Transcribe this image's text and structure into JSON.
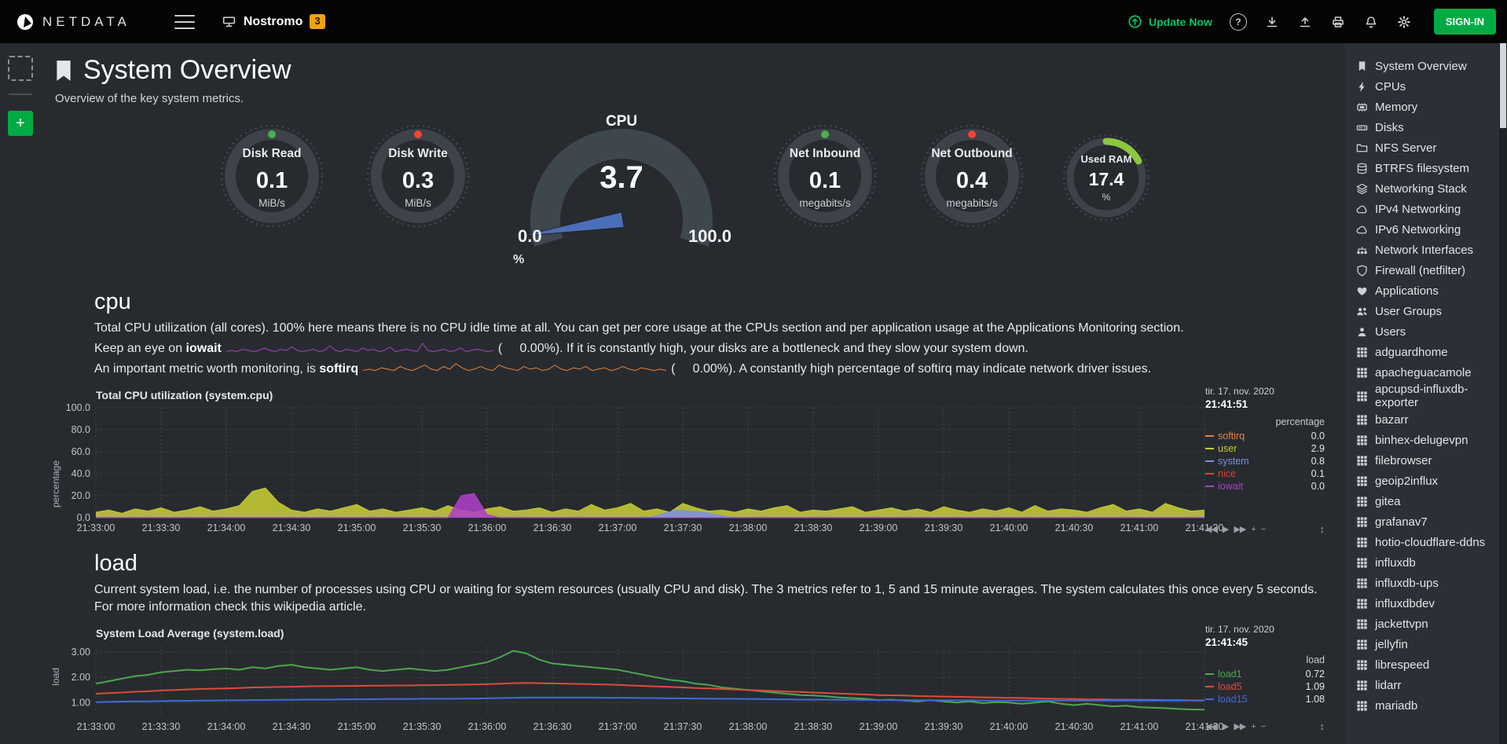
{
  "colors": {
    "accent_green": "#00AB44",
    "update_green": "#00C16A",
    "badge_orange": "#F2A20C",
    "needle": "#4A6FB8",
    "gauge_ring": "#3D4349",
    "gauge_ticks": "#474E54",
    "grid": "#3D4349"
  },
  "topbar": {
    "brand": "NETDATA",
    "node": {
      "name": "Nostromo",
      "badge": "3"
    },
    "update_now": "Update Now",
    "help_label": "?",
    "signin_label": "SIGN-IN"
  },
  "page": {
    "title": "System Overview",
    "subtitle": "Overview of the key system metrics.",
    "add_button_label": "+"
  },
  "gauges": {
    "disk_read": {
      "label": "Disk Read",
      "value": "0.1",
      "unit": "MiB/s",
      "percent": 1,
      "dot_color": "#4CAF50"
    },
    "disk_write": {
      "label": "Disk Write",
      "value": "0.3",
      "unit": "MiB/s",
      "percent": 1,
      "dot_color": "#EF4438"
    },
    "cpu": {
      "label": "CPU",
      "value": "3.7",
      "min": "0.0",
      "max": "100.0",
      "unit": "%"
    },
    "net_inbound": {
      "label": "Net Inbound",
      "value": "0.1",
      "unit": "megabits/s",
      "percent": 1,
      "dot_color": "#4CAF50"
    },
    "net_outbound": {
      "label": "Net Outbound",
      "value": "0.4",
      "unit": "megabits/s",
      "percent": 1,
      "dot_color": "#EF4438"
    },
    "used_ram": {
      "label": "Used RAM",
      "value": "17.4",
      "unit": "%",
      "percent": 17.4,
      "arc_color": "#8DC63F"
    }
  },
  "cpu_section": {
    "heading": "cpu",
    "para1": "Total CPU utilization (all cores). 100% here means there is no CPU idle time at all. You can get per core usage at the CPUs section and per application usage at the Applications Monitoring section.",
    "iowait_prefix": "Keep an eye on ",
    "iowait_keyword": "iowait",
    "iowait_value": "(     0.00%).",
    "iowait_suffix": " If it is constantly high, your disks are a bottleneck and they slow your system down.",
    "softirq_prefix": "An important metric worth monitoring, is ",
    "softirq_keyword": "softirq",
    "softirq_value": "(     0.00%).",
    "softirq_suffix": " A constantly high percentage of softirq may indicate network driver issues.",
    "iowait_spark": [
      1,
      2,
      1,
      3,
      2,
      1,
      2,
      4,
      2,
      1,
      3,
      2,
      5,
      2,
      1,
      2,
      3,
      1,
      2,
      6,
      2,
      1,
      3,
      2,
      1,
      4,
      2,
      3,
      1,
      2,
      5,
      1,
      2,
      3,
      2,
      1,
      8,
      2,
      1,
      2,
      3,
      1,
      2,
      4,
      1,
      2,
      3,
      2,
      1,
      2
    ],
    "iowait_spark_color": "#AE3FC6",
    "softirq_spark": [
      2,
      3,
      2,
      4,
      3,
      2,
      5,
      3,
      2,
      4,
      6,
      3,
      2,
      5,
      3,
      7,
      4,
      2,
      3,
      5,
      3,
      2,
      6,
      4,
      3,
      2,
      5,
      3,
      4,
      2,
      3,
      6,
      3,
      2,
      4,
      3,
      5,
      2,
      3,
      4,
      2,
      3,
      5,
      3,
      2,
      4,
      3,
      2,
      3,
      2
    ],
    "softirq_spark_color": "#E8823A"
  },
  "load_section": {
    "heading": "load",
    "para": "Current system load, i.e. the number of processes using CPU or waiting for system resources (usually CPU and disk). The 3 metrics refer to 1, 5 and 15 minute averages. The system calculates this once every 5 seconds. For more information check ",
    "link_text": "this wikipedia article."
  },
  "chart_controls": {
    "rewind": "◀◀",
    "play": "▶",
    "forward": "▶▶",
    "zoom_in": "+",
    "zoom_out": "−",
    "resize": "↕"
  },
  "chart_data": [
    {
      "id": "cpu",
      "type": "area",
      "title": "Total CPU utilization (system.cpu)",
      "date": "tir. 17. nov. 2020",
      "time": "21:41:51",
      "unit": "percentage",
      "ylabel": "percentage",
      "ylim": [
        0,
        100
      ],
      "yticks": [
        {
          "v": 100,
          "label": "100.0"
        },
        {
          "v": 80,
          "label": "80.0"
        },
        {
          "v": 60,
          "label": "60.0"
        },
        {
          "v": 40,
          "label": "40.0"
        },
        {
          "v": 20,
          "label": "20.0"
        },
        {
          "v": 0,
          "label": "0.0"
        }
      ],
      "x_ticks": [
        "21:33:00",
        "21:33:30",
        "21:34:00",
        "21:34:30",
        "21:35:00",
        "21:35:30",
        "21:36:00",
        "21:36:30",
        "21:37:00",
        "21:37:30",
        "21:38:00",
        "21:38:30",
        "21:39:00",
        "21:39:30",
        "21:40:00",
        "21:40:30",
        "21:41:00",
        "21:41:30"
      ],
      "series": [
        {
          "name": "softirq",
          "color": "#E8823A",
          "current": "0.0"
        },
        {
          "name": "user",
          "color": "#C7CC34",
          "current": "2.9",
          "fill": true,
          "values": [
            5,
            7,
            4,
            8,
            6,
            9,
            5,
            7,
            10,
            6,
            8,
            11,
            24,
            27,
            14,
            7,
            5,
            8,
            6,
            9,
            12,
            6,
            8,
            5,
            7,
            9,
            6,
            11,
            7,
            5,
            8,
            10,
            6,
            7,
            9,
            5,
            8,
            6,
            12,
            7,
            9,
            13,
            6,
            8,
            5,
            13,
            9,
            6,
            7,
            5,
            8,
            6,
            9,
            11,
            5,
            7,
            6,
            8,
            10,
            5,
            7,
            9,
            6,
            8,
            5,
            10,
            7,
            5,
            8,
            6,
            9,
            5,
            11,
            6,
            8,
            7,
            5,
            9,
            12,
            6,
            8,
            5,
            13,
            9,
            6,
            7
          ]
        },
        {
          "name": "system",
          "color": "#7C8FE0",
          "current": "0.8",
          "fill": true,
          "values": [
            0.5,
            0.5,
            0.5,
            0.5,
            0.5,
            0.5,
            0.5,
            0.5,
            0.5,
            0.5,
            0.5,
            0.5,
            0.5,
            0.5,
            0.5,
            0.5,
            0.5,
            0.5,
            0.5,
            0.5,
            0.5,
            0.5,
            7,
            5,
            0.5,
            0.5,
            0.5,
            0.5,
            0.5,
            0.5,
            0.5,
            0.5,
            0.5,
            0.5,
            0.5,
            0.5,
            0.5,
            0.5,
            0.5,
            0.5,
            0.5,
            0.5,
            0.5
          ]
        },
        {
          "name": "nice",
          "color": "#D8473B",
          "current": "0.1"
        },
        {
          "name": "iowait",
          "color": "#AE3FC6",
          "current": "0.0",
          "fill": true,
          "values": [
            0,
            0,
            0,
            0,
            0,
            0,
            0,
            0,
            0,
            0,
            0,
            0,
            0,
            0,
            0,
            0,
            0,
            0,
            0,
            0,
            0,
            0,
            0,
            0,
            0,
            0,
            0,
            0,
            20,
            22,
            3,
            0,
            0,
            0,
            0,
            0,
            0,
            0,
            0,
            0,
            0,
            0,
            0,
            0,
            0,
            0,
            0,
            0,
            0,
            0,
            0,
            0,
            0,
            0,
            0,
            0,
            0,
            0,
            0,
            0,
            0,
            0,
            0,
            0,
            0,
            0,
            0,
            0,
            0,
            0,
            0,
            0,
            0,
            0,
            0,
            0,
            0,
            0,
            0,
            0,
            0,
            0,
            0,
            0,
            0,
            0
          ]
        }
      ]
    },
    {
      "id": "load",
      "type": "line",
      "title": "System Load Average (system.load)",
      "date": "tir. 17. nov. 2020",
      "time": "21:41:45",
      "unit": "load",
      "ylabel": "load",
      "ylim": [
        0.45,
        3.25
      ],
      "yticks": [
        {
          "v": 3,
          "label": "3.00"
        },
        {
          "v": 2,
          "label": "2.00"
        },
        {
          "v": 1,
          "label": "1.00"
        }
      ],
      "x_ticks": [
        "21:33:00",
        "21:33:30",
        "21:34:00",
        "21:34:30",
        "21:35:00",
        "21:35:30",
        "21:36:00",
        "21:36:30",
        "21:37:00",
        "21:37:30",
        "21:38:00",
        "21:38:30",
        "21:39:00",
        "21:39:30",
        "21:40:00",
        "21:40:30",
        "21:41:00",
        "21:41:30"
      ],
      "series": [
        {
          "name": "load1",
          "color": "#4DA74D",
          "current": "0.72",
          "values": [
            1.75,
            1.85,
            1.95,
            2.05,
            2.1,
            2.2,
            2.25,
            2.3,
            2.28,
            2.32,
            2.35,
            2.3,
            2.4,
            2.35,
            2.45,
            2.5,
            2.4,
            2.35,
            2.3,
            2.35,
            2.4,
            2.3,
            2.25,
            2.3,
            2.35,
            2.3,
            2.25,
            2.3,
            2.4,
            2.5,
            2.6,
            2.8,
            3.05,
            2.95,
            2.7,
            2.55,
            2.5,
            2.45,
            2.4,
            2.35,
            2.3,
            2.2,
            2.1,
            2.0,
            1.9,
            1.85,
            1.75,
            1.7,
            1.6,
            1.55,
            1.5,
            1.45,
            1.4,
            1.35,
            1.3,
            1.28,
            1.25,
            1.2,
            1.18,
            1.15,
            1.1,
            1.12,
            1.08,
            1.05,
            1.1,
            1.05,
            1.0,
            1.05,
            0.98,
            1.02,
            1.0,
            0.95,
            1.0,
            1.05,
            0.95,
            0.9,
            0.95,
            0.9,
            0.85,
            0.88,
            0.82,
            0.8,
            0.78,
            0.75,
            0.73,
            0.72
          ]
        },
        {
          "name": "load5",
          "color": "#DD4B39",
          "current": "1.09",
          "values": [
            1.35,
            1.38,
            1.4,
            1.43,
            1.45,
            1.48,
            1.5,
            1.52,
            1.54,
            1.55,
            1.56,
            1.58,
            1.6,
            1.61,
            1.62,
            1.63,
            1.64,
            1.65,
            1.65,
            1.66,
            1.66,
            1.67,
            1.67,
            1.68,
            1.68,
            1.69,
            1.69,
            1.7,
            1.71,
            1.72,
            1.73,
            1.75,
            1.77,
            1.78,
            1.77,
            1.76,
            1.75,
            1.74,
            1.73,
            1.72,
            1.7,
            1.68,
            1.66,
            1.64,
            1.62,
            1.6,
            1.58,
            1.56,
            1.54,
            1.52,
            1.5,
            1.48,
            1.46,
            1.44,
            1.42,
            1.4,
            1.38,
            1.36,
            1.34,
            1.32,
            1.3,
            1.29,
            1.28,
            1.26,
            1.25,
            1.24,
            1.23,
            1.22,
            1.21,
            1.2,
            1.19,
            1.18,
            1.17,
            1.16,
            1.15,
            1.14,
            1.13,
            1.13,
            1.12,
            1.12,
            1.11,
            1.11,
            1.1,
            1.1,
            1.09,
            1.09
          ]
        },
        {
          "name": "load15",
          "color": "#4169D9",
          "current": "1.08",
          "values": [
            1.02,
            1.03,
            1.04,
            1.05,
            1.05,
            1.06,
            1.07,
            1.07,
            1.08,
            1.08,
            1.09,
            1.09,
            1.1,
            1.1,
            1.11,
            1.11,
            1.12,
            1.12,
            1.12,
            1.13,
            1.13,
            1.13,
            1.14,
            1.14,
            1.14,
            1.15,
            1.15,
            1.15,
            1.16,
            1.16,
            1.17,
            1.18,
            1.19,
            1.2,
            1.2,
            1.2,
            1.2,
            1.2,
            1.2,
            1.19,
            1.19,
            1.19,
            1.18,
            1.18,
            1.17,
            1.17,
            1.16,
            1.16,
            1.15,
            1.15,
            1.14,
            1.14,
            1.13,
            1.13,
            1.12,
            1.12,
            1.12,
            1.11,
            1.11,
            1.1,
            1.1,
            1.1,
            1.1,
            1.09,
            1.09,
            1.09,
            1.09,
            1.09,
            1.08,
            1.08,
            1.08,
            1.08,
            1.08,
            1.08,
            1.08,
            1.08,
            1.08,
            1.08,
            1.08,
            1.08,
            1.08,
            1.08,
            1.08,
            1.08,
            1.08,
            1.08
          ]
        }
      ]
    }
  ],
  "sidebar": {
    "items": [
      {
        "icon": "bookmark",
        "label": "System Overview"
      },
      {
        "icon": "bolt",
        "label": "CPUs"
      },
      {
        "icon": "memory",
        "label": "Memory"
      },
      {
        "icon": "disk",
        "label": "Disks"
      },
      {
        "icon": "folder",
        "label": "NFS Server"
      },
      {
        "icon": "database",
        "label": "BTRFS filesystem"
      },
      {
        "icon": "stack",
        "label": "Networking Stack"
      },
      {
        "icon": "cloud",
        "label": "IPv4 Networking"
      },
      {
        "icon": "cloud",
        "label": "IPv6 Networking"
      },
      {
        "icon": "interfaces",
        "label": "Network Interfaces"
      },
      {
        "icon": "shield",
        "label": "Firewall (netfilter)"
      },
      {
        "icon": "heart",
        "label": "Applications"
      },
      {
        "icon": "users",
        "label": "User Groups"
      },
      {
        "icon": "user",
        "label": "Users"
      },
      {
        "icon": "grid",
        "label": "adguardhome"
      },
      {
        "icon": "grid",
        "label": "apacheguacamole"
      },
      {
        "icon": "grid",
        "label": "apcupsd-influxdb-exporter"
      },
      {
        "icon": "grid",
        "label": "bazarr"
      },
      {
        "icon": "grid",
        "label": "binhex-delugevpn"
      },
      {
        "icon": "grid",
        "label": "filebrowser"
      },
      {
        "icon": "grid",
        "label": "geoip2influx"
      },
      {
        "icon": "grid",
        "label": "gitea"
      },
      {
        "icon": "grid",
        "label": "grafanav7"
      },
      {
        "icon": "grid",
        "label": "hotio-cloudflare-ddns"
      },
      {
        "icon": "grid",
        "label": "influxdb"
      },
      {
        "icon": "grid",
        "label": "influxdb-ups"
      },
      {
        "icon": "grid",
        "label": "influxdbdev"
      },
      {
        "icon": "grid",
        "label": "jackettvpn"
      },
      {
        "icon": "grid",
        "label": "jellyfin"
      },
      {
        "icon": "grid",
        "label": "librespeed"
      },
      {
        "icon": "grid",
        "label": "lidarr"
      },
      {
        "icon": "grid",
        "label": "mariadb"
      }
    ]
  }
}
